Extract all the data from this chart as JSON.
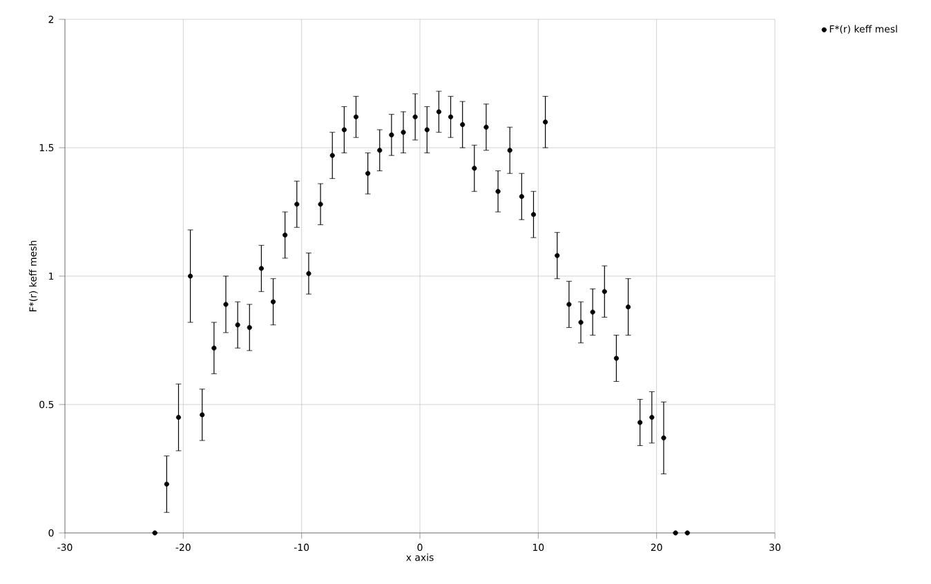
{
  "chart_data": {
    "type": "scatter",
    "xlabel": "x axis",
    "ylabel": "F*(r) keff mesh",
    "xlim": [
      -30,
      30
    ],
    "ylim": [
      0,
      2
    ],
    "xticks": [
      -30,
      -20,
      -10,
      0,
      10,
      20,
      30
    ],
    "yticks": [
      0,
      0.5,
      1,
      1.5,
      2
    ],
    "grid": true,
    "legend": "top right",
    "marker": "circle",
    "series": [
      {
        "name": "F*(r) keff mesl",
        "color": "#000000",
        "x": [
          -22.4,
          -21.4,
          -20.4,
          -19.4,
          -18.4,
          -17.4,
          -16.4,
          -15.4,
          -14.4,
          -13.4,
          -12.4,
          -11.4,
          -10.4,
          -9.4,
          -8.4,
          -7.4,
          -6.4,
          -5.4,
          -4.4,
          -3.4,
          -2.4,
          -1.4,
          -0.4,
          0.6,
          1.6,
          2.6,
          3.6,
          4.6,
          5.6,
          6.6,
          7.6,
          8.6,
          9.6,
          10.6,
          11.6,
          12.6,
          13.6,
          14.6,
          15.6,
          16.6,
          17.6,
          18.6,
          19.6,
          20.6,
          21.6,
          22.6
        ],
        "values": [
          0,
          0.19,
          0.45,
          1.0,
          0.46,
          0.72,
          0.89,
          0.81,
          0.8,
          1.03,
          0.9,
          1.16,
          1.28,
          1.01,
          1.28,
          1.47,
          1.57,
          1.62,
          1.4,
          1.49,
          1.55,
          1.56,
          1.62,
          1.57,
          1.64,
          1.62,
          1.59,
          1.42,
          1.58,
          1.33,
          1.49,
          1.31,
          1.24,
          1.6,
          1.08,
          0.89,
          0.82,
          0.86,
          0.94,
          0.68,
          0.88,
          0.43,
          0.45,
          0.37,
          0,
          0
        ],
        "errors": [
          null,
          0.11,
          0.13,
          0.18,
          0.1,
          0.1,
          0.11,
          0.09,
          0.09,
          0.09,
          0.09,
          0.09,
          0.09,
          0.08,
          0.08,
          0.09,
          0.09,
          0.08,
          0.08,
          0.08,
          0.08,
          0.08,
          0.09,
          0.09,
          0.08,
          0.08,
          0.09,
          0.09,
          0.09,
          0.08,
          0.09,
          0.09,
          0.09,
          0.1,
          0.09,
          0.09,
          0.08,
          0.09,
          0.1,
          0.09,
          0.11,
          0.09,
          0.1,
          0.14,
          null,
          null
        ]
      }
    ]
  }
}
